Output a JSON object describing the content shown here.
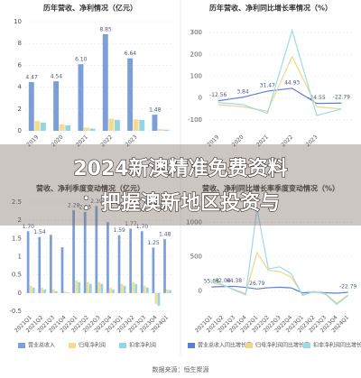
{
  "chart_data": [
    {
      "type": "bar",
      "title": "历年营收、净利情况（亿元）",
      "categories": [
        "2019",
        "2020",
        "2021",
        "2022",
        "2023",
        null
      ],
      "series": [
        {
          "color": "#7d9fd9",
          "values": [
            4.47,
            4.54,
            6.1,
            8.85,
            6.64,
            1.48
          ],
          "value_labels": [
            "4.47",
            "4.54",
            "6.10",
            "8.85",
            "6.64",
            "1.48"
          ]
        },
        {
          "color": "#f3dc90",
          "values": [
            0.9,
            0.6,
            0.3,
            1.1,
            1.05,
            0.15
          ]
        },
        {
          "color": "#93d5e2",
          "values": [
            0.75,
            0.5,
            0.2,
            1.0,
            1.0,
            0.1
          ]
        }
      ],
      "ylim": [
        0,
        10
      ],
      "yticks": [
        0,
        2,
        4,
        6,
        8,
        10
      ],
      "grid": true
    },
    {
      "type": "line",
      "title": "历年营收、净利同比增长率情况（%）",
      "categories": [
        "2019",
        "2020",
        "2021",
        "2022",
        "2023",
        null
      ],
      "series": [
        {
          "color": "#5b7fd6",
          "values": [
            -12.56,
            3.84,
            31.47,
            44.93,
            -24.55,
            -22.79
          ],
          "value_labels": [
            "-12.56",
            "3.84",
            "31.47",
            "44.93",
            "-24.55",
            "-22.79"
          ]
        },
        {
          "color": "#efd68a",
          "values": [
            -30,
            -40,
            -60,
            190,
            -40,
            -50
          ]
        },
        {
          "color": "#9bdbe8",
          "values": [
            -20,
            -30,
            -70,
            310,
            -80,
            -50
          ]
        }
      ],
      "ylim": [
        -150,
        350
      ],
      "yticks": [
        -100,
        0,
        100,
        200,
        300
      ],
      "grid": true
    },
    {
      "type": "bar",
      "title": "营收、净利季度变动情况（亿元）",
      "categories": [
        "2021Q1",
        "2021Q2",
        "2021Q3",
        "2021Q4",
        "2022Q1",
        "2022Q2",
        "2022Q3",
        "2022Q4",
        "2023Q1",
        "2023Q2",
        "2023Q3",
        "2023Q4",
        "2024Q1"
      ],
      "series": [
        {
          "name": "营业总收入",
          "color": "#7d9fd9",
          "values": [
            1.7,
            1.54,
            1.6,
            1.26,
            2.28,
            2.23,
            2.39,
            1.95,
            1.59,
            1.77,
            1.7,
            1.25,
            1.48
          ],
          "value_labels": [
            "1.70",
            "1.54",
            null,
            null,
            "2.28",
            "2.23",
            "2.39",
            null,
            "1.59",
            "1.77",
            "1.70",
            "1.25",
            "1.48"
          ]
        },
        {
          "name": "归母净利润",
          "color": "#f3dc90",
          "values": [
            0.2,
            0.15,
            0.1,
            0.05,
            0.35,
            0.3,
            0.3,
            0.15,
            0.25,
            0.3,
            0.2,
            -0.3,
            0.1
          ]
        },
        {
          "name": "扣非净利润",
          "color": "#93d5e2",
          "values": [
            0.15,
            0.1,
            0.05,
            0.02,
            0.3,
            0.25,
            0.25,
            0.1,
            0.2,
            0.25,
            0.15,
            -0.35,
            0.08
          ]
        }
      ],
      "ylim": [
        -0.5,
        2.5
      ],
      "yticks": [
        -0.5,
        0,
        0.5,
        1,
        1.5,
        2,
        2.5
      ],
      "grid": true
    },
    {
      "type": "line",
      "title": "营收、净利同比增长率季度变动情况（%）",
      "categories": [
        "2021Q1",
        "2021Q2",
        "2021Q3",
        "2021Q4",
        "2022Q1",
        "2022Q2",
        "2022Q3",
        "2022Q4",
        "2023Q1",
        "2023Q2",
        "2023Q3",
        "2023Q4",
        "2024Q1"
      ],
      "series": [
        {
          "name": "营业总收入同比增长率",
          "color": "#5b7fd6",
          "values": [
            55.64,
            62.04,
            64.38,
            49.43,
            26.79,
            44.8,
            52.1,
            42.4,
            -30.3,
            -20.6,
            -28.9,
            -35.9,
            -22.79
          ],
          "value_labels": [
            "55.64",
            "62.04",
            "64.38",
            null,
            "26.79",
            null,
            null,
            null,
            null,
            null,
            null,
            null,
            "-22.79"
          ]
        },
        {
          "name": "归母净利润同比增长率",
          "color": "#efd68a",
          "values": [
            120,
            80,
            20,
            -40,
            560,
            300,
            280,
            200,
            -60,
            -20,
            -40,
            -180,
            -60
          ]
        },
        {
          "name": "扣非净利润同比增长率",
          "color": "#9bdbe8",
          "values": [
            150,
            90,
            10,
            -60,
            1200,
            320,
            350,
            250,
            -70,
            -10,
            -50,
            -200,
            -70
          ]
        }
      ],
      "ylim": [
        -300,
        1300
      ],
      "yticks": [
        0,
        500,
        1000
      ],
      "grid": true
    }
  ],
  "overlay": [
    "2024新澳精准免费资料",
    "：把握澳新地区投资与"
  ],
  "source": "数据来源：恒生聚源"
}
